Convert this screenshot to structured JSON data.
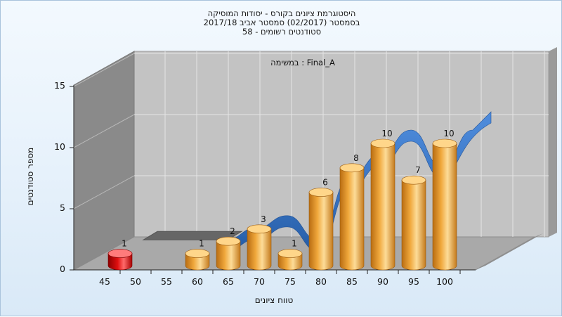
{
  "chart_data": {
    "type": "bar",
    "title_lines": [
      "היסטוגרמת ציונים בקורס - יסודות המוסיקה",
      "בסמסטר  (02/2017)  סמסטר אביב 2017/18",
      "סטודנטים רשומים - 58"
    ],
    "subtitle": "במשימה : Final_A",
    "xlabel": "טווח ציונים",
    "ylabel": "מספר סטודנטים",
    "ylim": [
      0,
      15
    ],
    "yticks": [
      "0",
      "5",
      "10",
      "15"
    ],
    "categories": [
      "45",
      "50",
      "55",
      "60",
      "65",
      "70",
      "75",
      "80",
      "85",
      "90",
      "95",
      "100"
    ],
    "values": [
      1,
      0,
      0,
      1,
      2,
      3,
      1,
      6,
      8,
      10,
      7,
      10
    ],
    "bar_labels": [
      "1",
      "",
      "",
      "1",
      "2",
      "3",
      "1",
      "6",
      "8",
      "10",
      "7",
      "10"
    ],
    "threshold_series_values": [
      0.5
    ],
    "failing_color": "#e01010",
    "passing_color": "#f0a83c",
    "curve_color": "#2f6fc4",
    "grid": true
  }
}
